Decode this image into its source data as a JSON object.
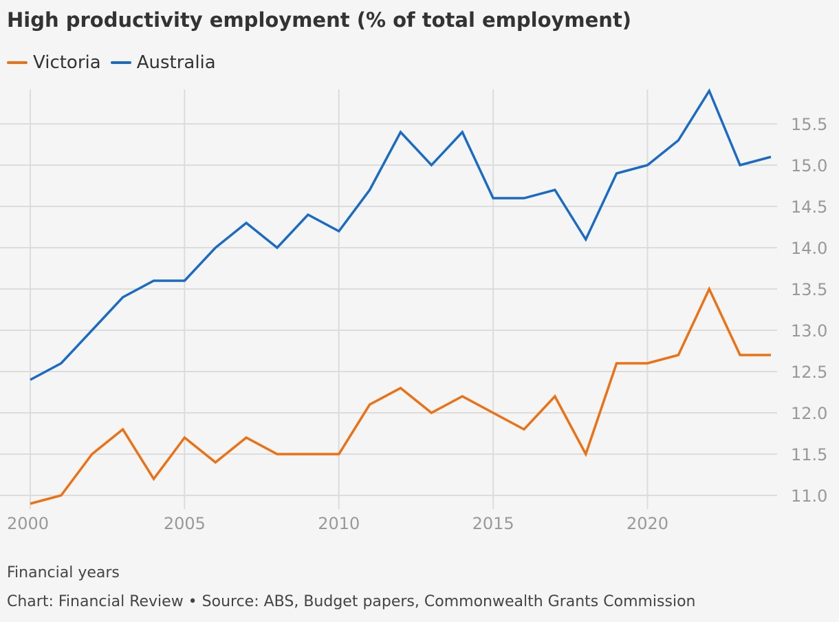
{
  "chart_data": {
    "type": "line",
    "title": "High productivity employment (% of total employment)",
    "x": [
      2000,
      2001,
      2002,
      2003,
      2004,
      2005,
      2006,
      2007,
      2008,
      2009,
      2010,
      2011,
      2012,
      2013,
      2014,
      2015,
      2016,
      2017,
      2018,
      2019,
      2020,
      2021,
      2022,
      2023,
      2024
    ],
    "series": [
      {
        "name": "Victoria",
        "color": "#ec7014",
        "values": [
          10.9,
          11.0,
          11.5,
          11.8,
          11.2,
          11.7,
          11.4,
          11.7,
          11.5,
          11.5,
          11.5,
          12.1,
          12.3,
          12.0,
          12.2,
          12.0,
          11.8,
          12.2,
          11.5,
          12.6,
          12.6,
          12.7,
          13.5,
          12.7,
          12.7
        ]
      },
      {
        "name": "Australia",
        "color": "#1a6bc4",
        "values": [
          12.4,
          12.6,
          13.0,
          13.4,
          13.6,
          13.6,
          14.0,
          14.3,
          14.0,
          14.4,
          14.2,
          14.7,
          15.4,
          15.0,
          15.4,
          14.6,
          14.6,
          14.7,
          14.1,
          14.9,
          15.0,
          15.3,
          15.9,
          15.0,
          15.1
        ]
      }
    ],
    "xlim": [
      2000,
      2024
    ],
    "ylim": [
      11.0,
      15.5
    ],
    "x_ticks": [
      "2000",
      "2005",
      "2010",
      "2015",
      "2020"
    ],
    "y_ticks": [
      "11.0",
      "11.5",
      "12.0",
      "12.5",
      "13.0",
      "13.5",
      "14.0",
      "14.5",
      "15.0",
      "15.5"
    ],
    "xlabel": "Financial years",
    "ylabel": "",
    "grid": true,
    "legend_position": "top-left",
    "y_axis_side": "right",
    "source": "Chart: Financial Review • Source: ABS, Budget papers, Commonwealth Grants Commission"
  }
}
